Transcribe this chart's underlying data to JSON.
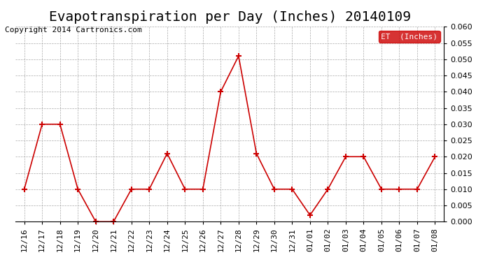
{
  "title": "Evapotranspiration per Day (Inches) 20140109",
  "copyright_text": "Copyright 2014 Cartronics.com",
  "legend_label": "ET  (Inches)",
  "x_labels": [
    "12/16",
    "12/17",
    "12/18",
    "12/19",
    "12/20",
    "12/21",
    "12/22",
    "12/23",
    "12/24",
    "12/25",
    "12/26",
    "12/27",
    "12/28",
    "12/29",
    "12/30",
    "12/31",
    "01/01",
    "01/02",
    "01/03",
    "01/04",
    "01/05",
    "01/06",
    "01/07",
    "01/08"
  ],
  "y_values": [
    0.01,
    0.03,
    0.03,
    0.01,
    0.0,
    0.0,
    0.01,
    0.01,
    0.021,
    0.01,
    0.01,
    0.04,
    0.051,
    0.021,
    0.01,
    0.01,
    0.002,
    0.01,
    0.02,
    0.02,
    0.01,
    0.01,
    0.01,
    0.02
  ],
  "ylim": [
    0.0,
    0.06
  ],
  "yticks": [
    0.0,
    0.005,
    0.01,
    0.015,
    0.02,
    0.025,
    0.03,
    0.035,
    0.04,
    0.045,
    0.05,
    0.055,
    0.06
  ],
  "line_color": "#cc0000",
  "marker": "+",
  "marker_size": 6,
  "line_width": 1.2,
  "bg_color": "#ffffff",
  "grid_color": "#aaaaaa",
  "title_fontsize": 14,
  "tick_fontsize": 8,
  "copyright_fontsize": 8,
  "legend_bg": "#cc0000",
  "legend_text_color": "#ffffff"
}
